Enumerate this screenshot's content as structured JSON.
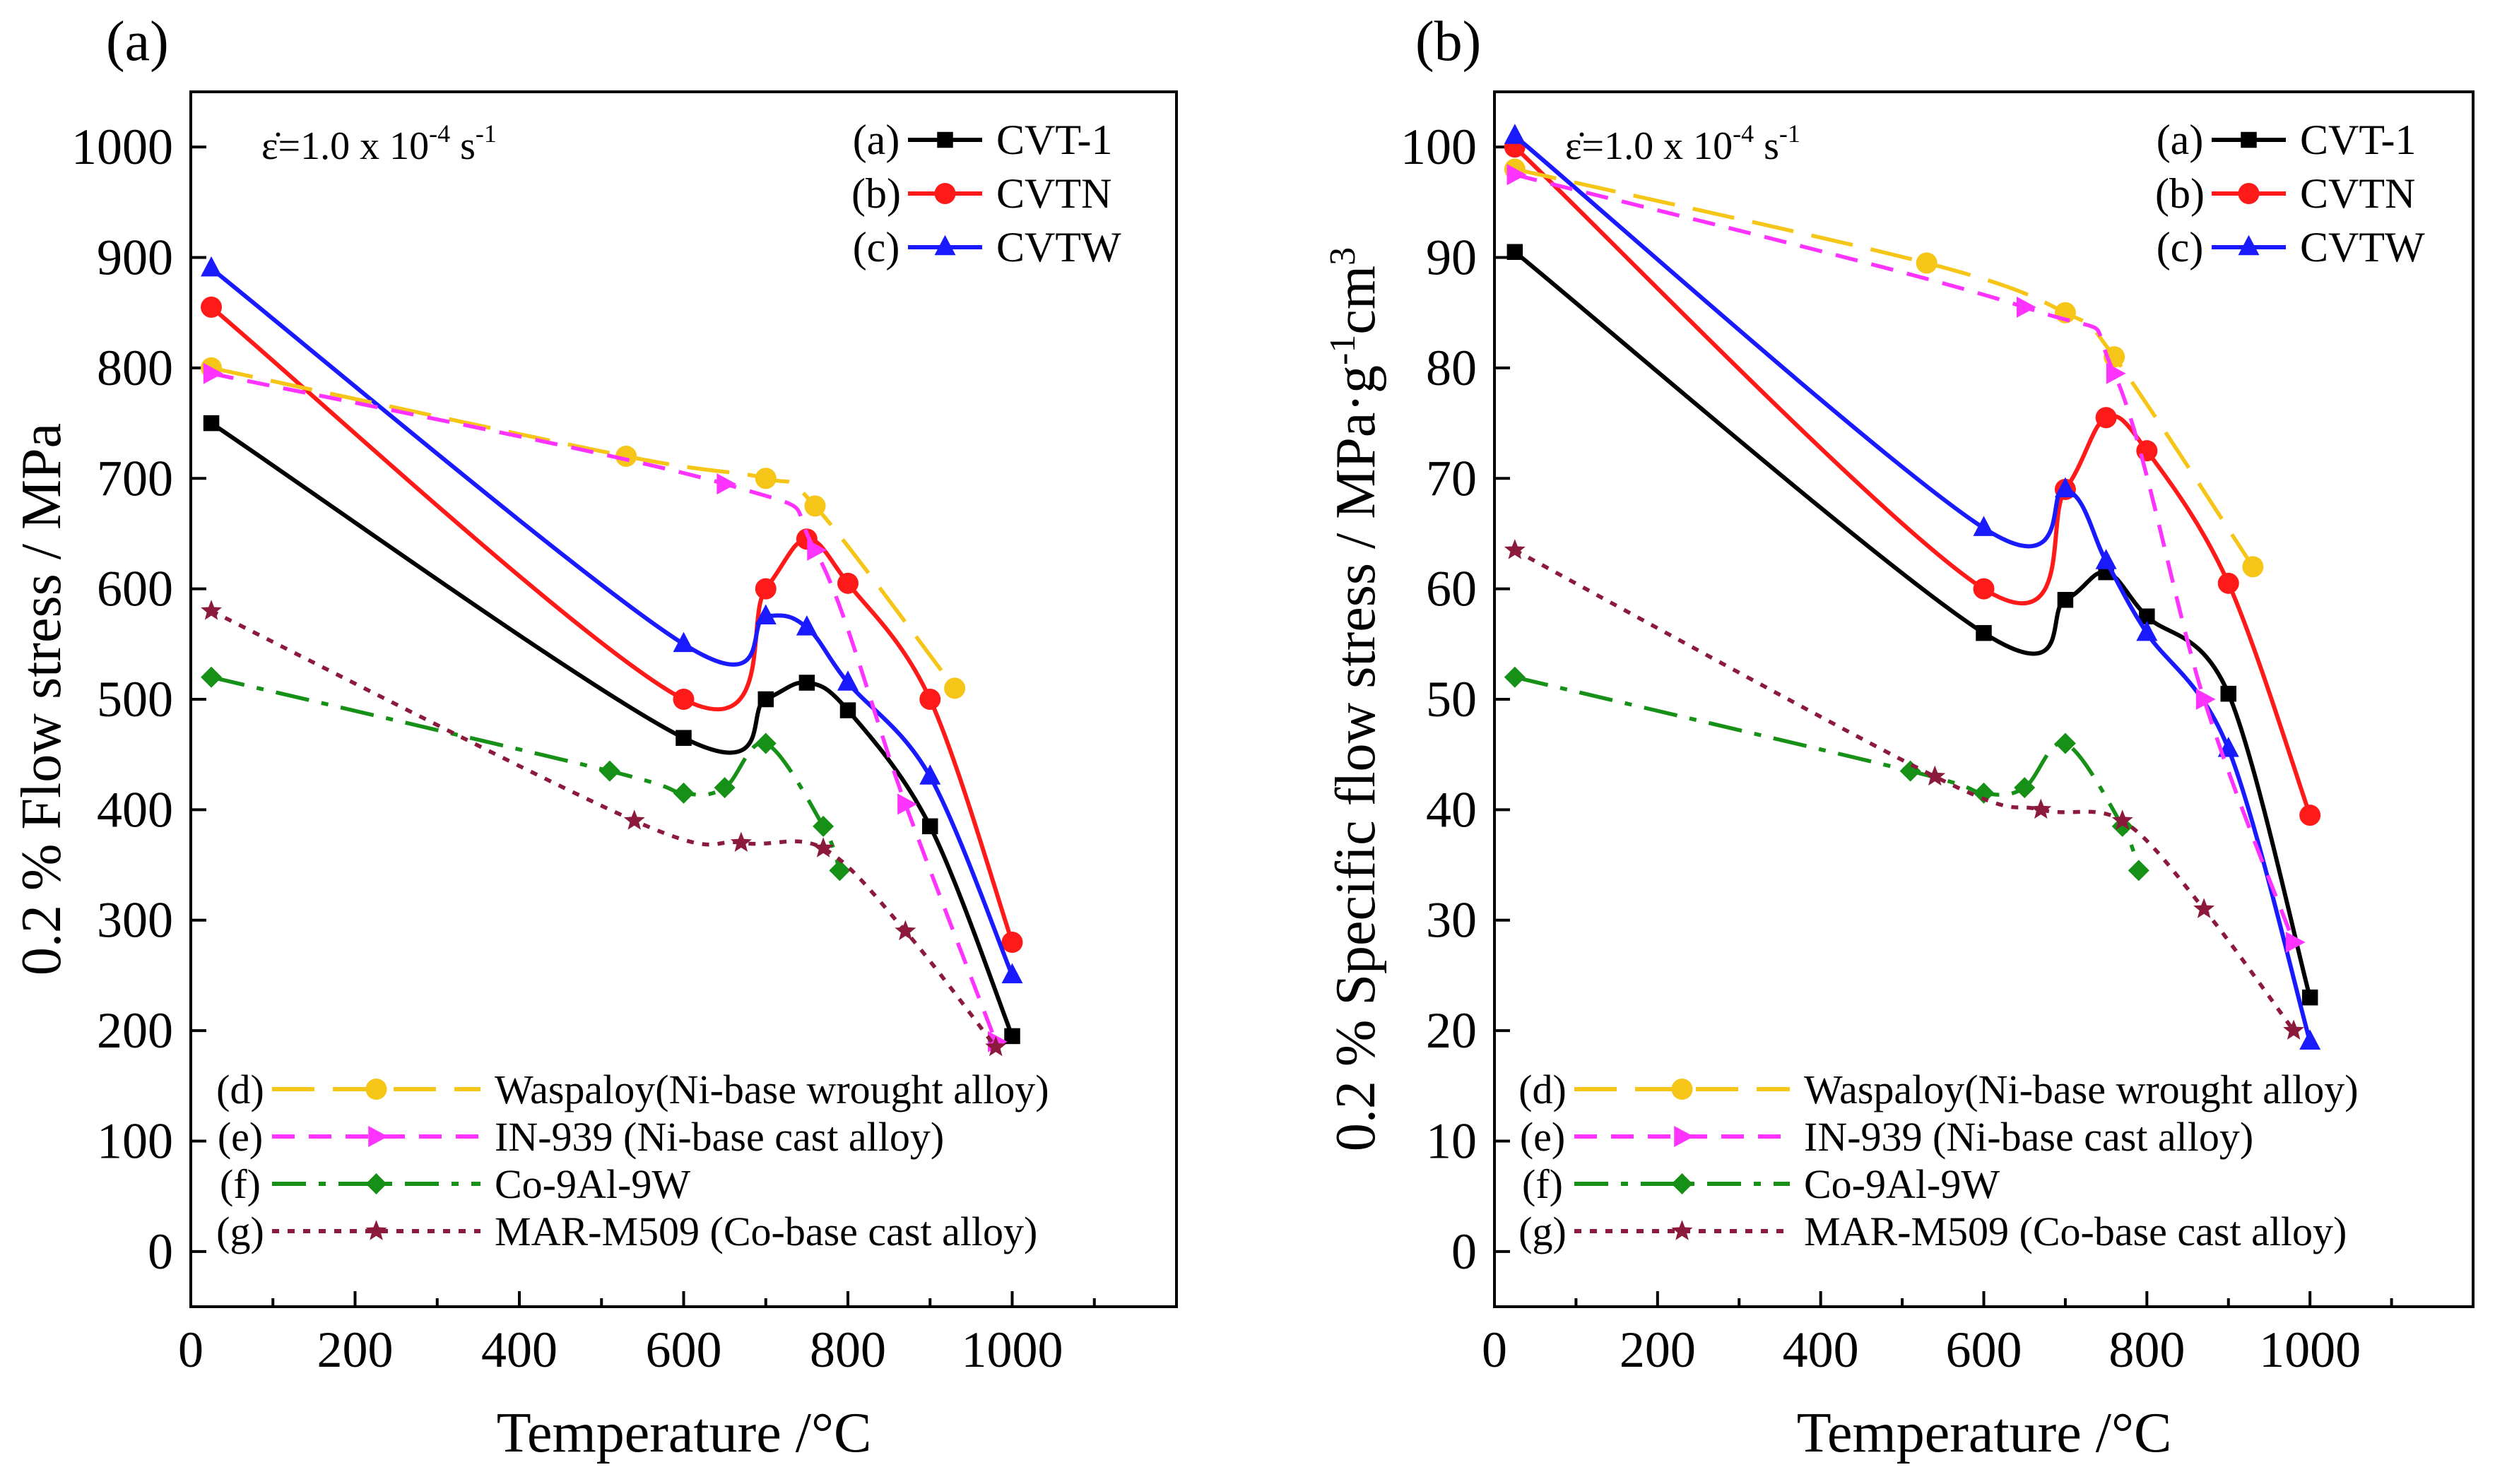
{
  "figure": {
    "colors": {
      "CVT-1": "#000000",
      "CVTN": "#ff1a1a",
      "CVTW": "#1a1aff",
      "Waspaloy": "#f5c518",
      "IN-939": "#ff33ff",
      "Co-9Al-9W": "#169016",
      "MAR-M509": "#8b1a3c"
    }
  },
  "chart_data": [
    {
      "panel_label": "(a)",
      "type": "line",
      "strain_rate_label": "ε̇=1.0 x 10",
      "strain_rate_exp": "-4",
      "strain_rate_unit": " s",
      "strain_rate_unit_exp": "-1",
      "xlabel": "Temperature /°C",
      "ylabel": "0.2 % Flow stress / MPa",
      "xlim": [
        0,
        1200
      ],
      "ylim": [
        -50,
        1050
      ],
      "x_ticks": [
        "0",
        "200",
        "400",
        "600",
        "800",
        "1000"
      ],
      "x_tick_values": [
        0,
        200,
        400,
        600,
        800,
        1000
      ],
      "y_ticks": [
        "0",
        "100",
        "200",
        "300",
        "400",
        "500",
        "600",
        "700",
        "800",
        "900",
        "1000"
      ],
      "y_tick_values": [
        0,
        100,
        200,
        300,
        400,
        500,
        600,
        700,
        800,
        900,
        1000
      ],
      "series": [
        {
          "tag": "(a)",
          "name": "CVT-1",
          "key": "CVT-1",
          "marker": "square",
          "dash": "solid",
          "x": [
            25,
            600,
            700,
            750,
            800,
            900,
            1000
          ],
          "y": [
            750,
            465,
            500,
            515,
            490,
            385,
            195
          ]
        },
        {
          "tag": "(b)",
          "name": "CVTN",
          "key": "CVTN",
          "marker": "circle",
          "dash": "solid",
          "x": [
            25,
            600,
            700,
            750,
            800,
            900,
            1000
          ],
          "y": [
            855,
            500,
            600,
            645,
            605,
            500,
            280
          ]
        },
        {
          "tag": "(c)",
          "name": "CVTW",
          "key": "CVTW",
          "marker": "triangle",
          "dash": "solid",
          "x": [
            25,
            600,
            700,
            750,
            800,
            900,
            1000
          ],
          "y": [
            890,
            550,
            575,
            565,
            515,
            430,
            250
          ]
        },
        {
          "tag": "(d)",
          "name": "Waspaloy(Ni-base wrought alloy)",
          "key": "Waspaloy",
          "marker": "circle",
          "dash": "longdash",
          "x": [
            25,
            530,
            700,
            760,
            930
          ],
          "y": [
            800,
            720,
            700,
            675,
            510
          ]
        },
        {
          "tag": "(e)",
          "name": "IN-939 (Ni-base cast alloy)",
          "key": "IN-939",
          "marker": "tri-right",
          "dash": "dash",
          "x": [
            25,
            650,
            760,
            870,
            980
          ],
          "y": [
            795,
            695,
            635,
            405,
            190
          ]
        },
        {
          "tag": "(f)",
          "name": "Co-9Al-9W",
          "key": "Co-9Al-9W",
          "marker": "diamond",
          "dash": "dashdot",
          "x": [
            25,
            510,
            600,
            650,
            700,
            770,
            790
          ],
          "y": [
            520,
            435,
            415,
            420,
            460,
            385,
            345
          ]
        },
        {
          "tag": "(g)",
          "name": "MAR-M509 (Co-base cast alloy)",
          "key": "MAR-M509",
          "marker": "star",
          "dash": "dot",
          "x": [
            25,
            540,
            670,
            770,
            870,
            980
          ],
          "y": [
            580,
            390,
            370,
            365,
            290,
            185
          ]
        }
      ]
    },
    {
      "panel_label": "(b)",
      "type": "line",
      "strain_rate_label": "ε̇=1.0 x 10",
      "strain_rate_exp": "-4",
      "strain_rate_unit": " s",
      "strain_rate_unit_exp": "-1",
      "xlabel": "Temperature /°C",
      "ylabel": "0.2 % Specific flow stress / MPa·g",
      "ylabel_sup1": "-1",
      "ylabel_mid": "cm",
      "ylabel_sup2": "3",
      "xlim": [
        0,
        1200
      ],
      "ylim": [
        -5,
        105
      ],
      "x_ticks": [
        "0",
        "200",
        "400",
        "600",
        "800",
        "1000"
      ],
      "x_tick_values": [
        0,
        200,
        400,
        600,
        800,
        1000
      ],
      "y_ticks": [
        "0",
        "10",
        "20",
        "30",
        "40",
        "50",
        "60",
        "70",
        "80",
        "90",
        "100"
      ],
      "y_tick_values": [
        0,
        10,
        20,
        30,
        40,
        50,
        60,
        70,
        80,
        90,
        100
      ],
      "series": [
        {
          "tag": "(a)",
          "name": "CVT-1",
          "key": "CVT-1",
          "marker": "square",
          "dash": "solid",
          "x": [
            25,
            600,
            700,
            750,
            800,
            900,
            1000
          ],
          "y": [
            90.5,
            56,
            59,
            61.5,
            57.5,
            50.5,
            23
          ]
        },
        {
          "tag": "(b)",
          "name": "CVTN",
          "key": "CVTN",
          "marker": "circle",
          "dash": "solid",
          "x": [
            25,
            600,
            700,
            750,
            800,
            900,
            1000
          ],
          "y": [
            100,
            60,
            69,
            75.5,
            72.5,
            60.5,
            39.5
          ]
        },
        {
          "tag": "(c)",
          "name": "CVTW",
          "key": "CVTW",
          "marker": "triangle",
          "dash": "solid",
          "x": [
            25,
            600,
            700,
            750,
            800,
            900,
            1000
          ],
          "y": [
            101,
            65.5,
            69,
            62.5,
            56,
            45.5,
            19
          ]
        },
        {
          "tag": "(d)",
          "name": "Waspaloy(Ni-base wrought alloy)",
          "key": "Waspaloy",
          "marker": "circle",
          "dash": "longdash",
          "x": [
            25,
            530,
            700,
            760,
            930
          ],
          "y": [
            98,
            89.5,
            85,
            81,
            62
          ]
        },
        {
          "tag": "(e)",
          "name": "IN-939 (Ni-base cast alloy)",
          "key": "IN-939",
          "marker": "tri-right",
          "dash": "dash",
          "x": [
            25,
            650,
            760,
            870,
            980
          ],
          "y": [
            97.5,
            85.5,
            79.5,
            50,
            28
          ]
        },
        {
          "tag": "(f)",
          "name": "Co-9Al-9W",
          "key": "Co-9Al-9W",
          "marker": "diamond",
          "dash": "dashdot",
          "x": [
            25,
            510,
            600,
            650,
            700,
            770,
            790
          ],
          "y": [
            52,
            43.5,
            41.5,
            42,
            46,
            38.5,
            34.5
          ]
        },
        {
          "tag": "(g)",
          "name": "MAR-M509 (Co-base cast alloy)",
          "key": "MAR-M509",
          "marker": "star",
          "dash": "dot",
          "x": [
            25,
            540,
            670,
            770,
            870,
            980
          ],
          "y": [
            63.5,
            43,
            40,
            39,
            31,
            20
          ]
        }
      ]
    }
  ]
}
